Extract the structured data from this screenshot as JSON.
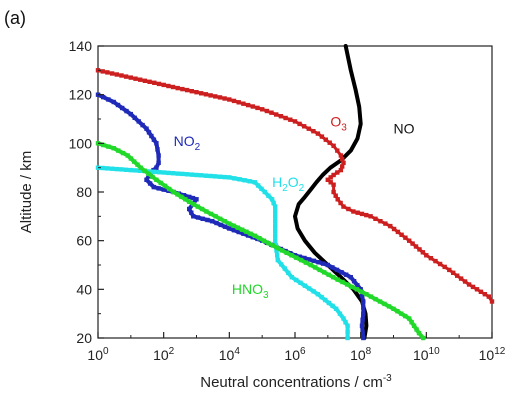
{
  "chart_data": {
    "type": "line",
    "panel_label": "(a)",
    "xlabel": "Neutral concentrations / cm",
    "xlabel_superscript": "-3",
    "ylabel": "Altitude / km",
    "x_scale": "log",
    "xlim": [
      1,
      1000000000000
    ],
    "ylim": [
      20,
      140
    ],
    "x_ticks": [
      {
        "value": 1,
        "base": "10",
        "exp": "0"
      },
      {
        "value": 100,
        "base": "10",
        "exp": "2"
      },
      {
        "value": 10000,
        "base": "10",
        "exp": "4"
      },
      {
        "value": 1000000,
        "base": "10",
        "exp": "6"
      },
      {
        "value": 100000000,
        "base": "10",
        "exp": "8"
      },
      {
        "value": 10000000000,
        "base": "10",
        "exp": "10"
      },
      {
        "value": 1000000000000,
        "base": "10",
        "exp": "12"
      }
    ],
    "y_ticks": [
      20,
      40,
      60,
      80,
      100,
      120,
      140
    ],
    "grid": false,
    "series": [
      {
        "name": "NO",
        "label_parts": [
          {
            "text": "NO",
            "sub": ""
          }
        ],
        "label_at": [
          1000000000.0,
          104
        ],
        "color": "#000000",
        "marker": "none",
        "width": 4,
        "points": [
          [
            130000000.0,
            20
          ],
          [
            150000000.0,
            25
          ],
          [
            140000000.0,
            30
          ],
          [
            110000000.0,
            35
          ],
          [
            60000000.0,
            40
          ],
          [
            25000000.0,
            45
          ],
          [
            10000000.0,
            50
          ],
          [
            4000000.0,
            55
          ],
          [
            2000000.0,
            60
          ],
          [
            1200000.0,
            65
          ],
          [
            1000000.0,
            70
          ],
          [
            1300000.0,
            75
          ],
          [
            2000000.0,
            78
          ],
          [
            3000000.0,
            81
          ],
          [
            4500000.0,
            84
          ],
          [
            7000000.0,
            87
          ],
          [
            12000000.0,
            90
          ],
          [
            25000000.0,
            93
          ],
          [
            50000000.0,
            97
          ],
          [
            80000000.0,
            102
          ],
          [
            100000000.0,
            108
          ],
          [
            90000000.0,
            115
          ],
          [
            70000000.0,
            122
          ],
          [
            50000000.0,
            130
          ],
          [
            35000000.0,
            140
          ]
        ]
      },
      {
        "name": "O3",
        "label_parts": [
          {
            "text": "O",
            "sub": "3"
          }
        ],
        "label_at": [
          12000000.0,
          107
        ],
        "color": "#cc1f1f",
        "marker": "square",
        "width": 3,
        "points": [
          [
            1,
            130
          ],
          [
            10,
            127
          ],
          [
            100,
            124
          ],
          [
            1000,
            121
          ],
          [
            10000.0,
            118
          ],
          [
            100000.0,
            114
          ],
          [
            1000000.0,
            109
          ],
          [
            5000000.0,
            104
          ],
          [
            15000000.0,
            99
          ],
          [
            25000000.0,
            95
          ],
          [
            30000000.0,
            92
          ],
          [
            25000000.0,
            89
          ],
          [
            15000000.0,
            87
          ],
          [
            10000000.0,
            85
          ],
          [
            15000000.0,
            83
          ],
          [
            15000000.0,
            80
          ],
          [
            20000000.0,
            77
          ],
          [
            30000000.0,
            74
          ],
          [
            60000000.0,
            72
          ],
          [
            200000000.0,
            70
          ],
          [
            800000000.0,
            66
          ],
          [
            3000000000.0,
            60
          ],
          [
            10000000000.0,
            54
          ],
          [
            50000000000.0,
            48
          ],
          [
            200000000000.0,
            42
          ],
          [
            800000000000.0,
            37
          ],
          [
            1000000000000.0,
            35
          ]
        ]
      },
      {
        "name": "NO2",
        "label_parts": [
          {
            "text": "NO",
            "sub": "2"
          }
        ],
        "label_at": [
          200,
          99
        ],
        "color": "#1f2ab8",
        "marker": "square",
        "width": 4,
        "points": [
          [
            1,
            120
          ],
          [
            3,
            117
          ],
          [
            10,
            112
          ],
          [
            30,
            106
          ],
          [
            60,
            100
          ],
          [
            70,
            95
          ],
          [
            70,
            92
          ],
          [
            60,
            90
          ],
          [
            40,
            88
          ],
          [
            30,
            85
          ],
          [
            50,
            82
          ],
          [
            200,
            80
          ],
          [
            600,
            78
          ],
          [
            1000,
            77
          ],
          [
            600,
            73
          ],
          [
            800,
            70
          ],
          [
            3000,
            68
          ],
          [
            10000.0,
            65
          ],
          [
            100000.0,
            60
          ],
          [
            1000000.0,
            54
          ],
          [
            10000000.0,
            50
          ],
          [
            50000000.0,
            45
          ],
          [
            100000000.0,
            40
          ],
          [
            120000000.0,
            35
          ],
          [
            120000000.0,
            30
          ],
          [
            110000000.0,
            25
          ],
          [
            120000000.0,
            20
          ]
        ]
      },
      {
        "name": "H2O2",
        "label_parts": [
          {
            "text": "H",
            "sub": "2"
          },
          {
            "text": "O",
            "sub": "2"
          }
        ],
        "label_at": [
          200000.0,
          82
        ],
        "color": "#22e0e8",
        "marker": "square",
        "width": 4,
        "points": [
          [
            1,
            90
          ],
          [
            10,
            89
          ],
          [
            100,
            88
          ],
          [
            1000,
            87
          ],
          [
            10000.0,
            86
          ],
          [
            60000.0,
            84
          ],
          [
            120000.0,
            80
          ],
          [
            200000.0,
            77
          ],
          [
            250000.0,
            74
          ],
          [
            250000.0,
            70
          ],
          [
            250000.0,
            60
          ],
          [
            300000.0,
            52
          ],
          [
            800000.0,
            45
          ],
          [
            5000000.0,
            38
          ],
          [
            18000000.0,
            32
          ],
          [
            30000000.0,
            28
          ],
          [
            40000000.0,
            25
          ],
          [
            40000000.0,
            20
          ]
        ]
      },
      {
        "name": "HNO3",
        "label_parts": [
          {
            "text": "HNO",
            "sub": "3"
          }
        ],
        "label_at": [
          12000.0,
          38
        ],
        "color": "#22d82a",
        "marker": "square",
        "width": 4,
        "points": [
          [
            1,
            100
          ],
          [
            3,
            98
          ],
          [
            8,
            95
          ],
          [
            20,
            90
          ],
          [
            60,
            85
          ],
          [
            200,
            80
          ],
          [
            600,
            76
          ],
          [
            2000,
            72
          ],
          [
            10000.0,
            67
          ],
          [
            60000.0,
            62
          ],
          [
            400000.0,
            56
          ],
          [
            3000000.0,
            50
          ],
          [
            20000000.0,
            44
          ],
          [
            150000000.0,
            38
          ],
          [
            1000000000.0,
            32
          ],
          [
            3000000000.0,
            28
          ],
          [
            6000000000.0,
            22
          ],
          [
            8000000000.0,
            20
          ]
        ]
      }
    ]
  }
}
